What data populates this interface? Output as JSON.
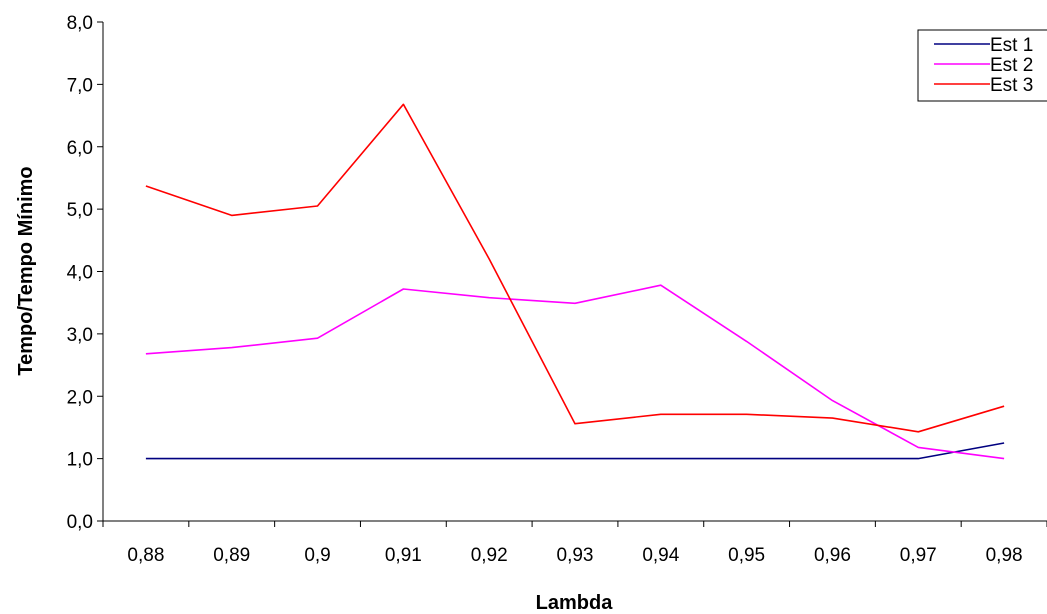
{
  "chart_data": {
    "type": "line",
    "title": "",
    "xlabel": "Lambda",
    "ylabel": "Tempo/Tempo Mínimo",
    "categories": [
      "0,88",
      "0,89",
      "0,9",
      "0,91",
      "0,92",
      "0,93",
      "0,94",
      "0,95",
      "0,96",
      "0,97",
      "0,98"
    ],
    "y_ticks": [
      "0,0",
      "1,0",
      "2,0",
      "3,0",
      "4,0",
      "5,0",
      "6,0",
      "7,0",
      "8,0"
    ],
    "ylim": [
      0,
      8
    ],
    "grid": false,
    "legend_position": "top-right",
    "series": [
      {
        "name": "Est 1",
        "color": "#000080",
        "values": [
          1.0,
          1.0,
          1.0,
          1.0,
          1.0,
          1.0,
          1.0,
          1.0,
          1.0,
          1.0,
          1.25
        ]
      },
      {
        "name": "Est 2",
        "color": "#ff00ff",
        "values": [
          2.68,
          2.78,
          2.93,
          3.72,
          3.58,
          3.49,
          3.78,
          2.88,
          1.93,
          1.18,
          1.0
        ]
      },
      {
        "name": "Est 3",
        "color": "#ff0000",
        "values": [
          5.37,
          4.9,
          5.05,
          6.68,
          4.2,
          1.56,
          1.71,
          1.71,
          1.65,
          1.43,
          1.84
        ]
      }
    ]
  }
}
